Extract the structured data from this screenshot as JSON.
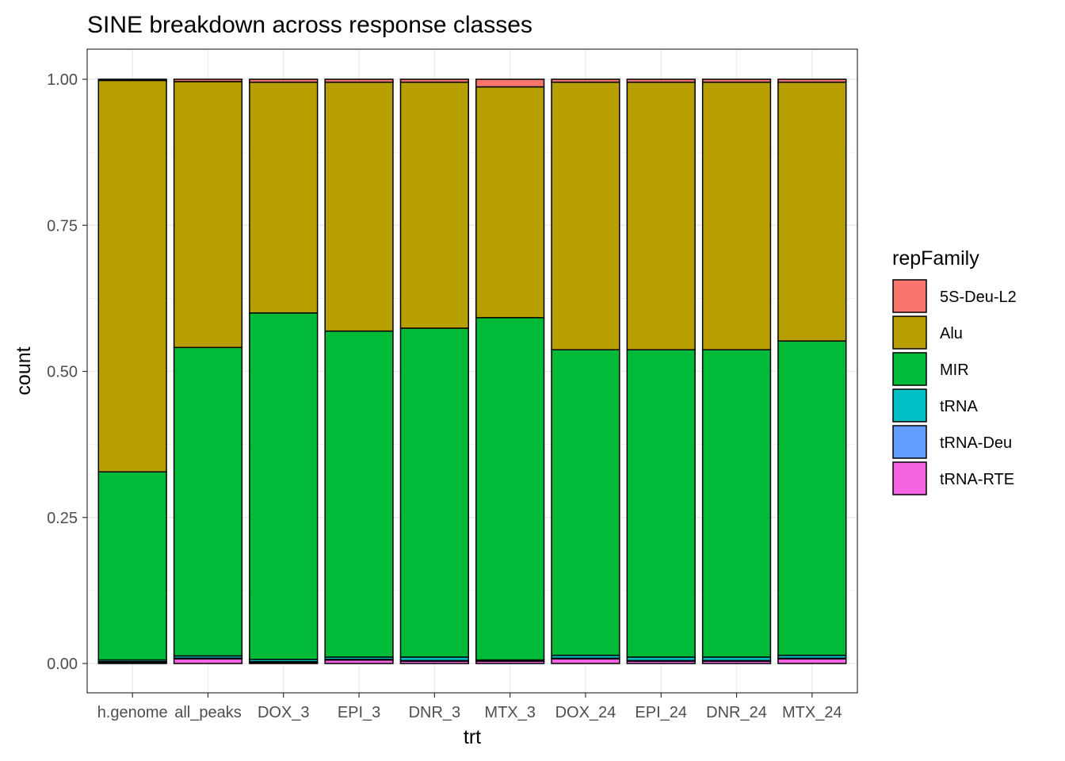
{
  "chart_data": {
    "type": "bar",
    "stacked": true,
    "title": "SINE breakdown across response classes",
    "xlabel": "trt",
    "ylabel": "count",
    "ylim": [
      0,
      1.0
    ],
    "yticks": [
      "0.00",
      "0.25",
      "0.50",
      "0.75",
      "1.00"
    ],
    "ytick_values": [
      0,
      0.25,
      0.5,
      0.75,
      1.0
    ],
    "grid": true,
    "legend_title": "repFamily",
    "legend_position": "right",
    "categories": [
      "h.genome",
      "all_peaks",
      "DOX_3",
      "EPI_3",
      "DNR_3",
      "MTX_3",
      "DOX_24",
      "EPI_24",
      "DNR_24",
      "MTX_24"
    ],
    "series": [
      {
        "name": "tRNA-RTE",
        "color": "#F564E3",
        "values": [
          0.002,
          0.008,
          0.002,
          0.006,
          0.004,
          0.004,
          0.008,
          0.004,
          0.004,
          0.008
        ]
      },
      {
        "name": "tRNA-Deu",
        "color": "#619CFF",
        "values": [
          0.001,
          0.001,
          0.001,
          0.001,
          0.001,
          0.0,
          0.001,
          0.001,
          0.001,
          0.001
        ]
      },
      {
        "name": "tRNA",
        "color": "#00BFC4",
        "values": [
          0.003,
          0.004,
          0.004,
          0.004,
          0.006,
          0.002,
          0.005,
          0.006,
          0.006,
          0.005
        ]
      },
      {
        "name": "MIR",
        "color": "#00BA38",
        "values": [
          0.322,
          0.528,
          0.593,
          0.558,
          0.563,
          0.586,
          0.523,
          0.526,
          0.526,
          0.538
        ]
      },
      {
        "name": "Alu",
        "color": "#B79F00",
        "values": [
          0.67,
          0.455,
          0.395,
          0.426,
          0.421,
          0.395,
          0.458,
          0.458,
          0.458,
          0.443
        ]
      },
      {
        "name": "5S-Deu-L2",
        "color": "#F8766D",
        "values": [
          0.002,
          0.004,
          0.005,
          0.005,
          0.005,
          0.013,
          0.005,
          0.005,
          0.005,
          0.005
        ]
      }
    ],
    "legend_order": [
      "5S-Deu-L2",
      "Alu",
      "MIR",
      "tRNA",
      "tRNA-Deu",
      "tRNA-RTE"
    ]
  }
}
